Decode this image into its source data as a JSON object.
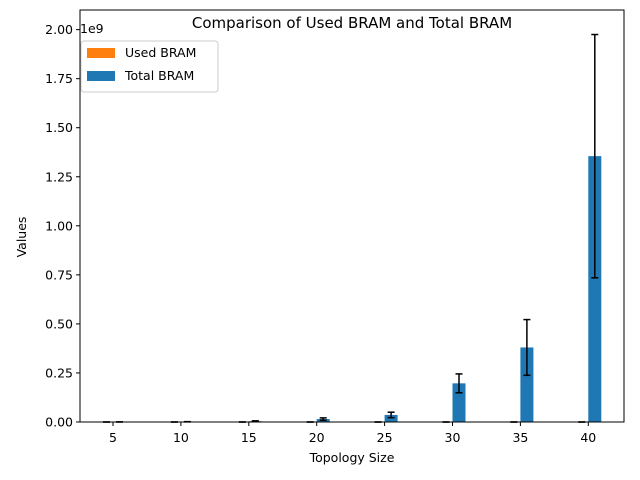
{
  "chart_data": {
    "type": "bar",
    "title": "Comparison of Used BRAM and Total BRAM",
    "xlabel": "Topology Size",
    "ylabel": "Values",
    "y_offset_label": "1e9",
    "y_scale_factor": 1000000000,
    "categories": [
      "5",
      "10",
      "15",
      "20",
      "25",
      "30",
      "35",
      "40"
    ],
    "ylim": [
      0,
      2.1
    ],
    "yticks": [
      "0.00",
      "0.25",
      "0.50",
      "0.75",
      "1.00",
      "1.25",
      "1.50",
      "1.75",
      "2.00"
    ],
    "series": [
      {
        "name": "Used BRAM",
        "color": "#ff7f0e",
        "values": [
          0,
          0,
          0,
          0,
          0,
          0,
          0,
          0
        ],
        "errors": [
          0,
          0,
          0,
          0,
          0,
          0,
          0,
          0
        ]
      },
      {
        "name": "Total BRAM",
        "color": "#1f77b4",
        "values": [
          0.0003,
          0.0012,
          0.004,
          0.015,
          0.036,
          0.197,
          0.38,
          1.355
        ],
        "errors": [
          0.0002,
          0.0006,
          0.002,
          0.006,
          0.014,
          0.048,
          0.142,
          0.62
        ]
      }
    ],
    "legend": {
      "position": "top-left"
    },
    "grid": false
  }
}
